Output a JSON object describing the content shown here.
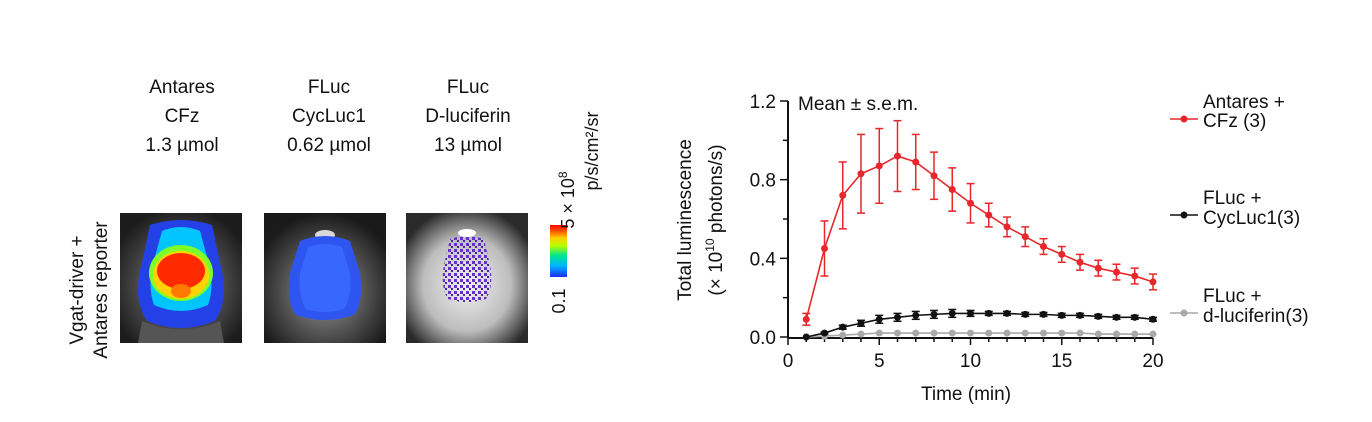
{
  "left_panel": {
    "columns": [
      {
        "line1": "Antares",
        "line2": "CFz",
        "line3": "1.3 µmol"
      },
      {
        "line1": "FLuc",
        "line2": "CycLuc1",
        "line3": "0.62 µmol"
      },
      {
        "line1": "FLuc",
        "line2": "D-luciferin",
        "line3": "13 µmol"
      }
    ],
    "row_label_line1": "Vgat-driver +",
    "row_label_line2": "Antares reporter",
    "colorbar": {
      "min_label": "0.1",
      "max_label": "5 × 10",
      "max_exp": "8",
      "units": "p/s/cm²/sr"
    }
  },
  "chart_data": {
    "type": "line",
    "annotation": "Mean ± s.e.m.",
    "xlabel": "Time (min)",
    "ylabel_line1": "Total luminescence",
    "ylabel_line2_prefix": "(× 10",
    "ylabel_line2_exp": "10",
    "ylabel_line2_suffix": " photons/s)",
    "xlim": [
      0,
      20
    ],
    "ylim": [
      0,
      1.2
    ],
    "xticks": [
      0,
      5,
      10,
      15,
      20
    ],
    "yticks": [
      "0.0",
      "0.4",
      "0.8",
      "1.2"
    ],
    "x": [
      1,
      2,
      3,
      4,
      5,
      6,
      7,
      8,
      9,
      10,
      11,
      12,
      13,
      14,
      15,
      16,
      17,
      18,
      19,
      20
    ],
    "series": [
      {
        "name_line1": "Antares +",
        "name_line2": "CFz (3)",
        "color": "#e8262b",
        "values": [
          0.09,
          0.45,
          0.72,
          0.83,
          0.87,
          0.92,
          0.89,
          0.82,
          0.75,
          0.68,
          0.62,
          0.56,
          0.51,
          0.46,
          0.42,
          0.38,
          0.35,
          0.33,
          0.31,
          0.28
        ],
        "errors": [
          0.03,
          0.14,
          0.17,
          0.2,
          0.19,
          0.18,
          0.14,
          0.12,
          0.11,
          0.1,
          0.06,
          0.05,
          0.05,
          0.04,
          0.04,
          0.04,
          0.04,
          0.04,
          0.04,
          0.04
        ]
      },
      {
        "name_line1": "FLuc +",
        "name_line2": "CycLuc1(3)",
        "color": "#111111",
        "values": [
          0.0,
          0.02,
          0.05,
          0.07,
          0.09,
          0.1,
          0.11,
          0.115,
          0.12,
          0.12,
          0.12,
          0.12,
          0.115,
          0.115,
          0.11,
          0.11,
          0.105,
          0.1,
          0.1,
          0.09
        ],
        "errors": [
          0.0,
          0.005,
          0.01,
          0.015,
          0.02,
          0.02,
          0.02,
          0.02,
          0.02,
          0.015,
          0.01,
          0.01,
          0.01,
          0.01,
          0.01,
          0.01,
          0.01,
          0.01,
          0.01,
          0.01
        ]
      },
      {
        "name_line1": "FLuc +",
        "name_line2": "d-luciferin(3)",
        "color": "#aaaaaa",
        "values": [
          0.0,
          0.005,
          0.01,
          0.015,
          0.02,
          0.02,
          0.02,
          0.02,
          0.02,
          0.02,
          0.02,
          0.02,
          0.02,
          0.02,
          0.02,
          0.02,
          0.015,
          0.015,
          0.015,
          0.015
        ],
        "errors": [
          0,
          0,
          0,
          0,
          0,
          0,
          0,
          0,
          0,
          0,
          0,
          0,
          0,
          0,
          0,
          0,
          0,
          0,
          0,
          0
        ]
      }
    ]
  }
}
